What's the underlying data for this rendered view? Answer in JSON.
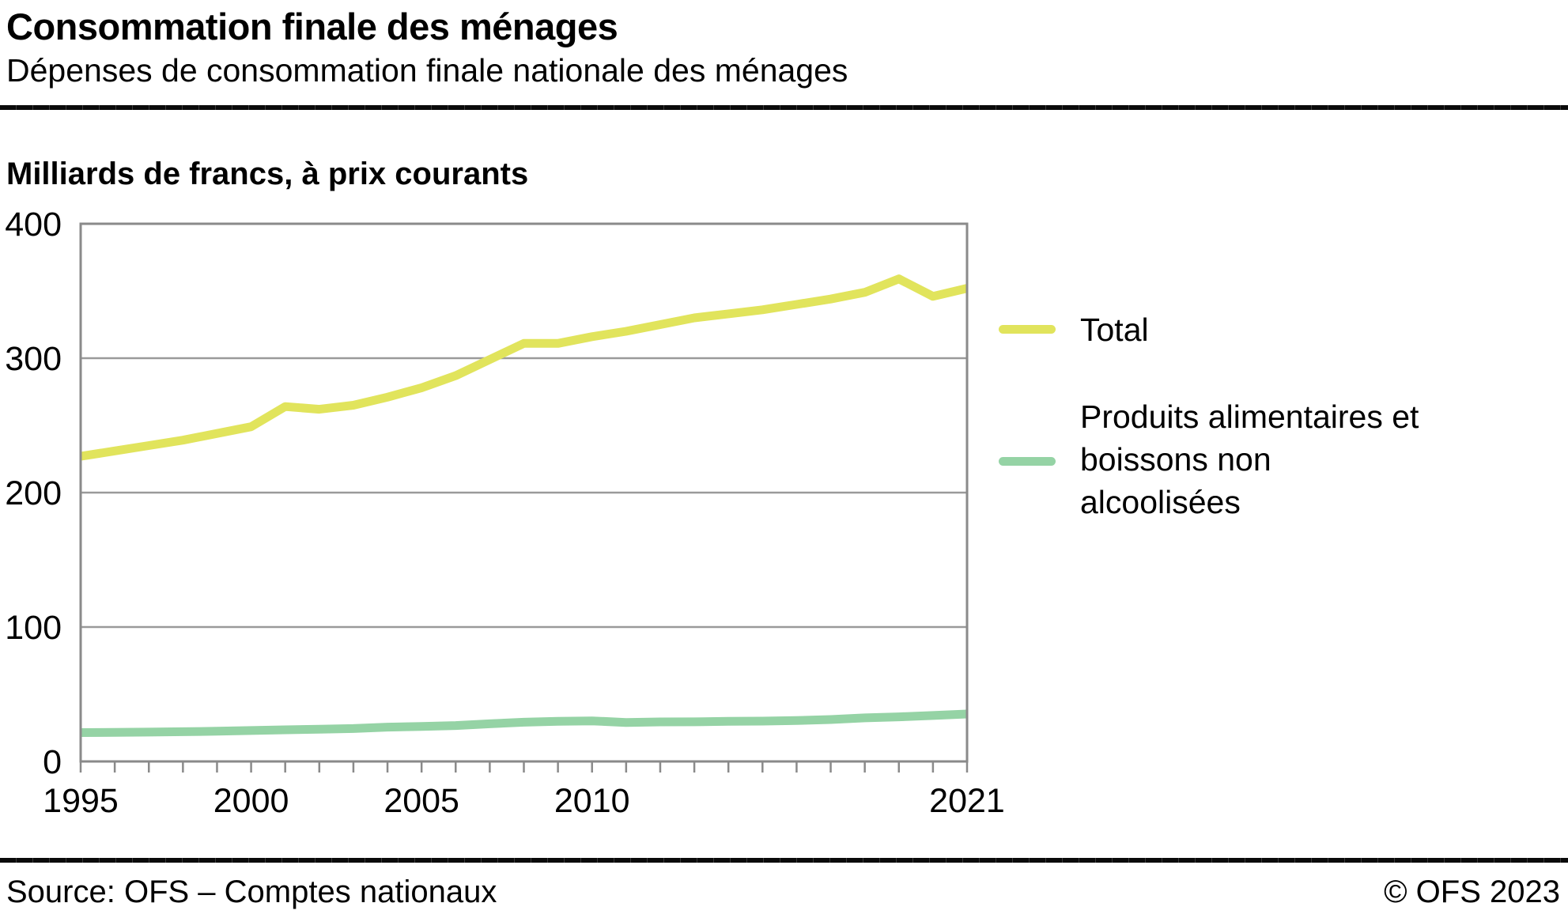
{
  "header": {
    "title": "Consommation finale des ménages",
    "subtitle": "Dépenses de consommation finale nationale des ménages"
  },
  "units_heading": "Milliards de francs, à prix courants",
  "legend": {
    "items": [
      {
        "label": "Total",
        "color": "#E1E45C"
      },
      {
        "label": "Produits alimentaires et\nboissons non\nalcoolisées",
        "color": "#95D3A5"
      }
    ]
  },
  "footer": {
    "source": "Source: OFS – Comptes nationaux",
    "copyright": "© OFS 2023"
  },
  "chart_data": {
    "type": "line",
    "title": "Milliards de francs, à prix courants",
    "xlabel": "",
    "ylabel": "Milliards de francs",
    "ylim": [
      0,
      400
    ],
    "y_ticks": [
      0,
      100,
      200,
      300,
      400
    ],
    "grid": true,
    "legend_position": "right",
    "x": [
      1995,
      1996,
      1997,
      1998,
      1999,
      2000,
      2001,
      2002,
      2003,
      2004,
      2005,
      2006,
      2007,
      2008,
      2009,
      2010,
      2011,
      2012,
      2013,
      2014,
      2015,
      2016,
      2017,
      2018,
      2019,
      2020,
      2021
    ],
    "x_tick_labels": [
      {
        "label": "1995",
        "year": 1995
      },
      {
        "label": "2000",
        "year": 2000
      },
      {
        "label": "2005",
        "year": 2005
      },
      {
        "label": "2010",
        "year": 2010
      },
      {
        "label": "2021",
        "year": 2021
      }
    ],
    "series": [
      {
        "name": "Total",
        "color": "#E1E45C",
        "values": [
          227,
          231,
          235,
          239,
          244,
          249,
          264,
          262,
          265,
          271,
          278,
          287,
          299,
          311,
          311,
          316,
          320,
          325,
          330,
          333,
          336,
          340,
          344,
          349,
          359,
          346,
          352
        ]
      },
      {
        "name": "Produits alimentaires et boissons non alcoolisées",
        "color": "#95D3A5",
        "values": [
          21.5,
          21.6,
          21.8,
          22.1,
          22.5,
          23,
          23.5,
          24,
          24.5,
          25.5,
          26,
          26.7,
          28,
          29.2,
          29.8,
          30.2,
          29,
          29.4,
          29.5,
          29.8,
          30,
          30.4,
          31.2,
          32.4,
          33.2,
          34.2,
          35.3
        ]
      }
    ]
  }
}
